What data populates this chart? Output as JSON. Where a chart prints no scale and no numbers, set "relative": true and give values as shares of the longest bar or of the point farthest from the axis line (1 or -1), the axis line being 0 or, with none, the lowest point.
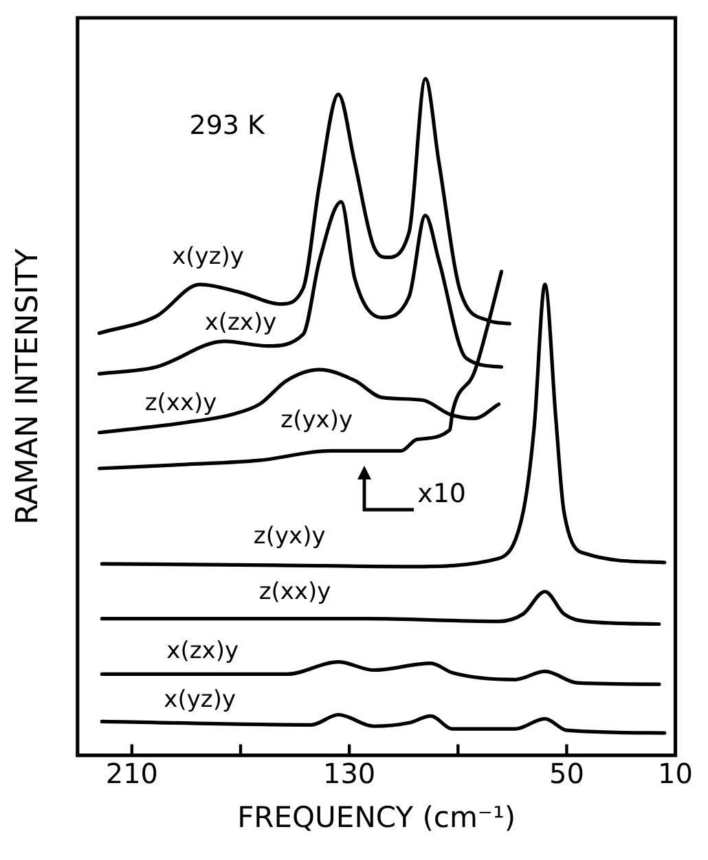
{
  "chart_data": {
    "type": "line",
    "relative": true,
    "xlabel": "FREQUENCY (cm⁻¹)",
    "ylabel": "RAMAN INTENSITY",
    "xlim": [
      230,
      10
    ],
    "xticks": [
      210,
      {
        "value": 170,
        "label": null
      },
      130,
      {
        "value": 90,
        "label": null
      },
      50,
      10
    ],
    "tick_labels": "x",
    "grid": false,
    "legend": false,
    "marker": "none",
    "line_style": "solid",
    "annotations": [
      "293 K",
      "x10"
    ],
    "series": [
      {
        "name": "x(yz)y",
        "color": "#000000",
        "x": [
          222,
          201,
          185,
          170,
          155,
          147,
          141,
          134,
          128,
          121,
          116,
          108,
          102,
          97,
          89,
          79,
          71
        ],
        "values": [
          0.624,
          0.649,
          0.696,
          0.684,
          0.667,
          0.69,
          0.843,
          0.977,
          0.876,
          0.752,
          0.736,
          0.773,
          1,
          0.876,
          0.684,
          0.643,
          0.638
        ]
      },
      {
        "name": "x(zx)y",
        "color": "#000000",
        "x": [
          222,
          201,
          176,
          160,
          147,
          141,
          133,
          128,
          118,
          108,
          102,
          97,
          87,
          74
        ],
        "values": [
          0.564,
          0.574,
          0.612,
          0.605,
          0.622,
          0.731,
          0.818,
          0.705,
          0.647,
          0.678,
          0.798,
          0.731,
          0.587,
          0.574
        ]
      },
      {
        "name": "z(xx)y",
        "color": "#000000",
        "x": [
          222,
          190,
          173,
          163,
          153,
          141,
          128,
          118,
          103,
          93,
          84,
          75
        ],
        "values": [
          0.477,
          0.492,
          0.504,
          0.519,
          0.554,
          0.57,
          0.554,
          0.529,
          0.525,
          0.504,
          0.498,
          0.519
        ]
      },
      {
        "name": "z(yx)y",
        "color": "#000000",
        "x": [
          222,
          190,
          163,
          137,
          111,
          105,
          93,
          92,
          84,
          79,
          74
        ],
        "values": [
          0.424,
          0.43,
          0.436,
          0.45,
          0.45,
          0.467,
          0.481,
          0.508,
          0.566,
          0.636,
          0.715
        ]
      },
      {
        "name": "z(yx)y",
        "color": "#000000",
        "x": [
          221,
          157,
          108,
          75,
          66,
          62,
          58,
          54,
          51,
          43,
          14
        ],
        "values": [
          0.283,
          0.281,
          0.279,
          0.291,
          0.36,
          0.483,
          0.696,
          0.498,
          0.36,
          0.298,
          0.285
        ]
      },
      {
        "name": "z(xx)y",
        "color": "#000000",
        "x": [
          221,
          124,
          75,
          66,
          58,
          51,
          43,
          16
        ],
        "values": [
          0.202,
          0.202,
          0.198,
          0.209,
          0.242,
          0.209,
          0.198,
          0.194
        ]
      },
      {
        "name": "x(zx)y",
        "color": "#000000",
        "x": [
          221,
          153,
          134,
          121,
          100,
          92,
          69,
          58,
          46,
          16
        ],
        "values": [
          0.12,
          0.12,
          0.138,
          0.126,
          0.136,
          0.122,
          0.112,
          0.124,
          0.107,
          0.105
        ]
      },
      {
        "name": "x(yz)y",
        "color": "#000000",
        "x": [
          221,
          144,
          134,
          121,
          108,
          100,
          92,
          69,
          58,
          50,
          14
        ],
        "values": [
          0.05,
          0.045,
          0.06,
          0.043,
          0.048,
          0.058,
          0.039,
          0.039,
          0.054,
          0.037,
          0.033
        ]
      }
    ]
  }
}
